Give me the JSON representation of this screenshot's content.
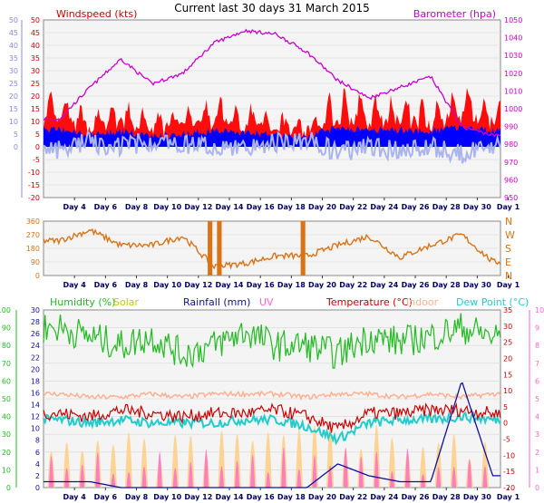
{
  "title": "Current last 30 days 31 March 2015",
  "x_days": [
    "Day 4",
    "Day 6",
    "Day 8",
    "Day 10",
    "Day 12",
    "Day 14",
    "Day 16",
    "Day 18",
    "Day 20",
    "Day 22",
    "Day 24",
    "Day 26",
    "Day 28",
    "Day 30",
    "Day 1"
  ],
  "colors": {
    "wind": "#ff0000",
    "gust_band": "#ff0000",
    "avg_wind": "#0000ff",
    "temp_feel": "#aab4f0",
    "baro": "#cc00cc",
    "direction": "#d97316",
    "humidity": "#22bb22",
    "solar": "#c8c800",
    "rain": "#1010a0",
    "uv": "#ff66cc",
    "temperature": "#cc0000",
    "indoor": "#ffb090",
    "dewpoint": "#22cccc"
  },
  "chart_data": [
    {
      "type": "area",
      "name": "wind_baro",
      "legend": [
        "Windspeed (kts)",
        "Barometer (hpa)"
      ],
      "ylim_left": [
        -20,
        50
      ],
      "ylim_inner_left": [
        0,
        50
      ],
      "ylim_right": [
        950,
        1050
      ],
      "ticks_left": [
        "50",
        "45",
        "40",
        "35",
        "30",
        "25",
        "20",
        "15",
        "10",
        "5",
        "0",
        "-5",
        "-10",
        "-15",
        "-20"
      ],
      "ticks_inner_left": [
        "50",
        "45",
        "40",
        "35",
        "30",
        "25",
        "20",
        "15",
        "10",
        "5",
        "0"
      ],
      "ticks_right": [
        "1050",
        "1040",
        "1030",
        "1020",
        "1010",
        "1000",
        "990",
        "980",
        "970",
        "960",
        "950"
      ],
      "x": [
        3,
        5,
        7,
        9,
        11,
        13,
        15,
        17,
        19,
        21,
        23,
        25,
        27,
        29,
        31
      ],
      "series": [
        {
          "name": "Barometer (hpa)",
          "values": [
            994,
            1012,
            1028,
            1014,
            1020,
            1037,
            1044,
            1042,
            1032,
            1016,
            1006,
            1012,
            1018,
            990,
            985
          ]
        },
        {
          "name": "Windspeed (kts)",
          "values": [
            12,
            7,
            10,
            6,
            8,
            11,
            9,
            7,
            5,
            14,
            11,
            12,
            10,
            15,
            10
          ]
        }
      ]
    },
    {
      "type": "line",
      "name": "wind_direction",
      "ylim_left": [
        0,
        360
      ],
      "ticks_left": [
        "360",
        "270",
        "180",
        "90",
        "0"
      ],
      "ticks_right": [
        "N",
        "W",
        "S",
        "E",
        "N"
      ],
      "x": [
        3,
        5,
        7,
        9,
        11,
        13,
        15,
        17,
        19,
        21,
        23,
        25,
        27,
        29,
        31
      ],
      "series": [
        {
          "name": "Direction",
          "values": [
            230,
            300,
            200,
            200,
            260,
            60,
            80,
            130,
            130,
            200,
            260,
            120,
            200,
            270,
            90
          ]
        }
      ]
    },
    {
      "type": "line",
      "name": "temp_humidity",
      "legend": [
        "Humidity (%)",
        "Solar",
        "Rainfall (mm)",
        "UV",
        "Temperature (°C)",
        "Indoor",
        "Dew Point (°C)"
      ],
      "ticks_humidity": [
        "100",
        "90",
        "80",
        "70",
        "60",
        "50",
        "40",
        "30",
        "20",
        "10",
        "0"
      ],
      "ticks_rain": [
        "30",
        "28",
        "26",
        "24",
        "22",
        "20",
        "18",
        "16",
        "14",
        "12",
        "10",
        "8",
        "6",
        "4",
        "2",
        "0"
      ],
      "ticks_temp": [
        "35",
        "30",
        "25",
        "20",
        "15",
        "10",
        "5",
        "0",
        "-5",
        "-10",
        "-15",
        "-20"
      ],
      "ticks_uv": [
        "10",
        "9",
        "8",
        "7",
        "6",
        "5",
        "4",
        "3",
        "2",
        "1",
        "0"
      ],
      "x": [
        3,
        5,
        7,
        9,
        11,
        13,
        15,
        17,
        19,
        21,
        23,
        25,
        27,
        29,
        31
      ],
      "series": [
        {
          "name": "Humidity (%)",
          "values": [
            90,
            85,
            80,
            85,
            75,
            80,
            88,
            80,
            80,
            75,
            85,
            82,
            85,
            90,
            85
          ]
        },
        {
          "name": "Temperature (°C)",
          "values": [
            3,
            2,
            4,
            3,
            2,
            3,
            3,
            4,
            2,
            -2,
            3,
            3,
            4,
            4,
            3
          ]
        },
        {
          "name": "Dew Point (°C)",
          "values": [
            1,
            0,
            1,
            0,
            0,
            0,
            1,
            1,
            -1,
            -5,
            0,
            1,
            1,
            2,
            1
          ]
        },
        {
          "name": "Indoor",
          "values": [
            9,
            8,
            8,
            9,
            8,
            9,
            9,
            9,
            8,
            9,
            9,
            8,
            9,
            8,
            9
          ]
        },
        {
          "name": "Rainfall (mm)",
          "values": [
            1,
            1,
            0,
            0,
            0,
            0,
            0,
            0,
            0,
            4,
            2,
            1,
            1,
            18,
            2
          ]
        }
      ]
    }
  ]
}
